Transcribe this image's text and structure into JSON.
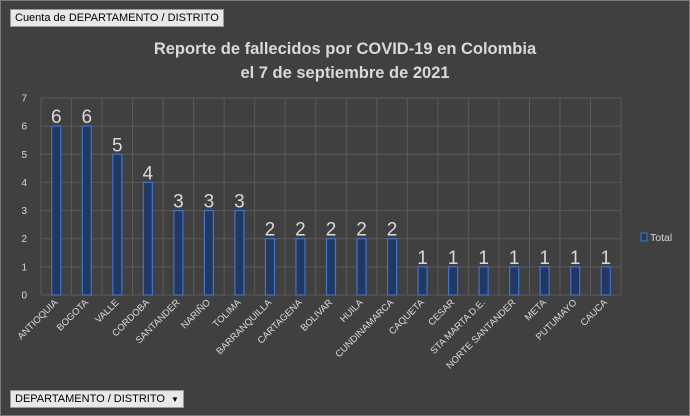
{
  "field_buttons": {
    "value_field": "Cuenta de DEPARTAMENTO / DISTRITO",
    "axis_field": "DEPARTAMENTO / DISTRITO",
    "axis_dropdown_icon": "triangle-down"
  },
  "chart_data": {
    "type": "bar",
    "title_lines": [
      "Reporte de fallecidos por COVID-19 en Colombia",
      "el 7 de septiembre de 2021"
    ],
    "xlabel": "",
    "ylabel": "",
    "ylim": [
      0,
      7
    ],
    "yticks": [
      0,
      1,
      2,
      3,
      4,
      5,
      6,
      7
    ],
    "grid": true,
    "legend_position": "right",
    "categories": [
      "ANTIOQUIA",
      "BOGOTA",
      "VALLE",
      "CORDOBA",
      "SANTANDER",
      "NARIÑO",
      "TOLIMA",
      "BARRANQUILLA",
      "CARTAGENA",
      "BOLIVAR",
      "HUILA",
      "CUNDINAMARCA",
      "CAQUETA",
      "CESAR",
      "STA MARTA D.E.",
      "NORTE SANTANDER",
      "META",
      "PUTUMAYO",
      "CAUCA"
    ],
    "series": [
      {
        "name": "Total",
        "values": [
          6,
          6,
          5,
          4,
          3,
          3,
          3,
          2,
          2,
          2,
          2,
          2,
          1,
          1,
          1,
          1,
          1,
          1,
          1
        ]
      }
    ],
    "colors": {
      "bar_fill": "#1f3864",
      "bar_stroke": "#4472c4",
      "grid": "#5a5a5a",
      "text": "#d9d9d9",
      "background": "#404040"
    }
  }
}
